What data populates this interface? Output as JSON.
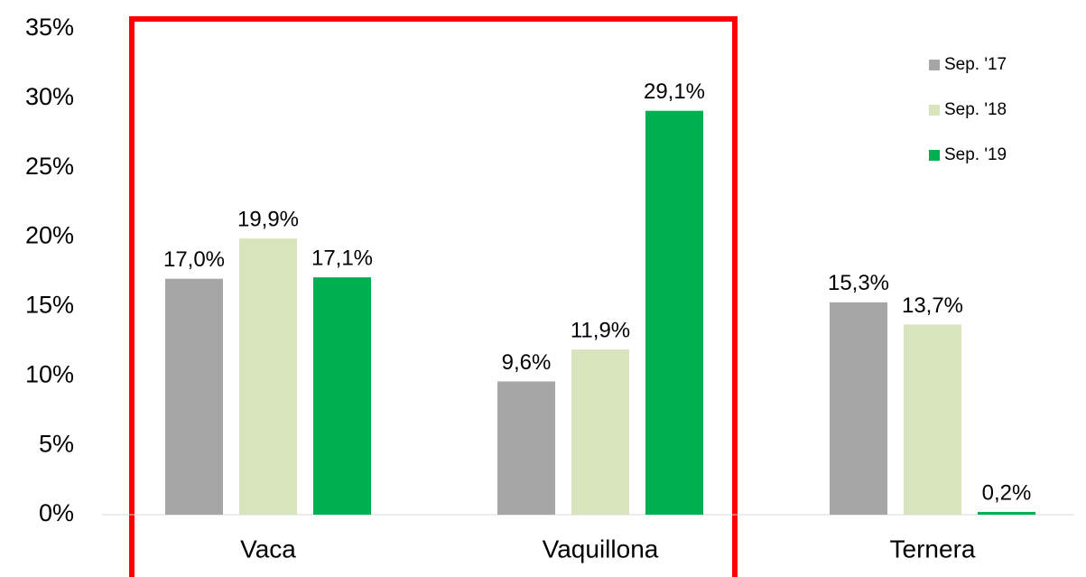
{
  "chart_data": {
    "type": "bar",
    "categories": [
      "Vaca",
      "Vaquillona",
      "Ternera"
    ],
    "series": [
      {
        "name": "Sep. '17",
        "color": "#a6a6a6",
        "values": [
          17.0,
          9.6,
          15.3
        ],
        "value_labels": [
          "17,0%",
          "9,6%",
          "15,3%"
        ]
      },
      {
        "name": "Sep. '18",
        "color": "#d8e4bc",
        "values": [
          19.9,
          11.9,
          13.7
        ],
        "value_labels": [
          "19,9%",
          "11,9%",
          "13,7%"
        ]
      },
      {
        "name": "Sep. '19",
        "color": "#00b050",
        "values": [
          17.1,
          29.1,
          0.2
        ],
        "value_labels": [
          "17,1%",
          "29,1%",
          "0,2%"
        ]
      }
    ],
    "ylim": [
      0,
      35
    ],
    "yticks": [
      {
        "value": 0,
        "label": "0%"
      },
      {
        "value": 5,
        "label": "5%"
      },
      {
        "value": 10,
        "label": "10%"
      },
      {
        "value": 15,
        "label": "15%"
      },
      {
        "value": 20,
        "label": "20%"
      },
      {
        "value": 25,
        "label": "25%"
      },
      {
        "value": 30,
        "label": "30%"
      },
      {
        "value": 35,
        "label": "35%"
      }
    ],
    "grid": false,
    "legend": "top-right"
  }
}
